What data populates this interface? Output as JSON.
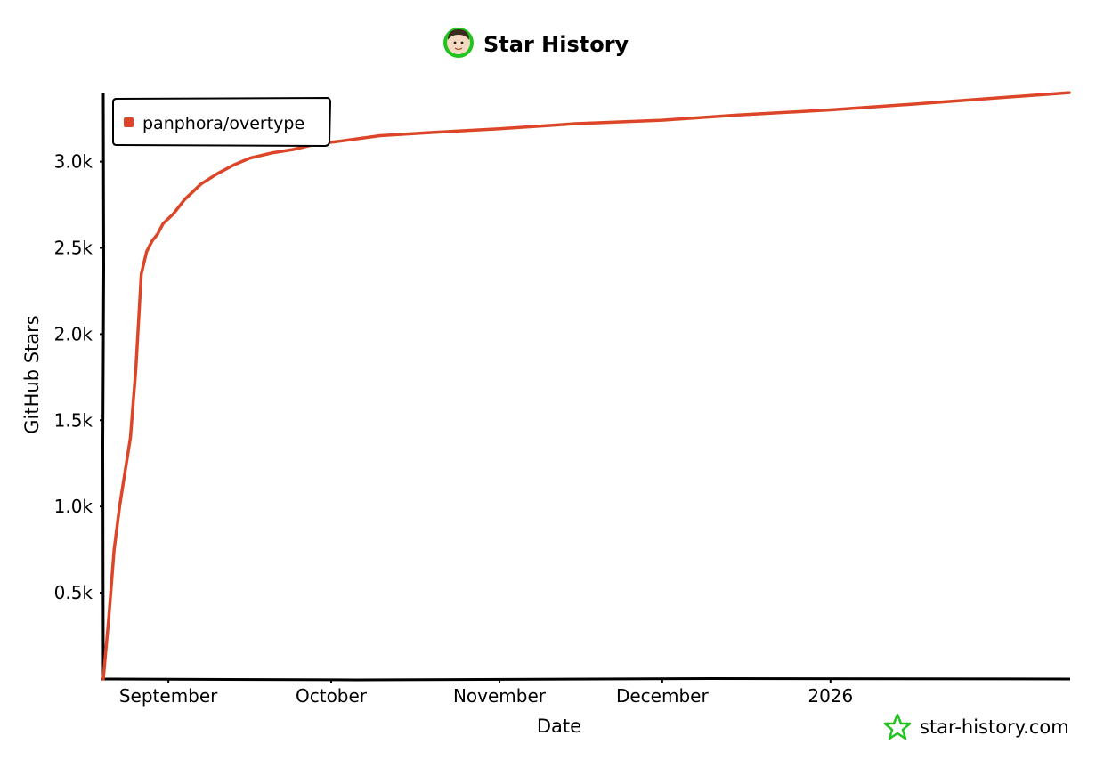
{
  "chart_data": {
    "type": "line",
    "title": "Star History",
    "xlabel": "Date",
    "ylabel": "GitHub Stars",
    "x_ticks": [
      "September",
      "October",
      "November",
      "December",
      "2026"
    ],
    "y_ticks": [
      "0.5k",
      "1.0k",
      "1.5k",
      "2.0k",
      "2.5k",
      "3.0k"
    ],
    "ylim": [
      0,
      3400
    ],
    "xlim": [
      "2025-08-20",
      "2026-02-14"
    ],
    "grid": false,
    "legend": "top-left",
    "series": [
      {
        "name": "panphora/overtype",
        "color": "#dd4528",
        "x": [
          "2025-08-20",
          "2025-08-21",
          "2025-08-22",
          "2025-08-23",
          "2025-08-24",
          "2025-08-25",
          "2025-08-26",
          "2025-08-27",
          "2025-08-28",
          "2025-08-29",
          "2025-08-30",
          "2025-08-31",
          "2025-09-02",
          "2025-09-04",
          "2025-09-07",
          "2025-09-10",
          "2025-09-13",
          "2025-09-16",
          "2025-09-20",
          "2025-09-24",
          "2025-09-28",
          "2025-10-03",
          "2025-10-10",
          "2025-10-20",
          "2025-11-01",
          "2025-11-15",
          "2025-12-01",
          "2025-12-15",
          "2026-01-01",
          "2026-01-15",
          "2026-02-01",
          "2026-02-14"
        ],
        "values": [
          0,
          350,
          750,
          1000,
          1200,
          1400,
          1800,
          2350,
          2480,
          2540,
          2580,
          2640,
          2700,
          2780,
          2870,
          2930,
          2980,
          3020,
          3050,
          3070,
          3100,
          3120,
          3150,
          3170,
          3190,
          3220,
          3240,
          3270,
          3300,
          3330,
          3370,
          3400
        ]
      }
    ]
  },
  "watermark": {
    "text": "star-history.com",
    "icon": "star-outline-icon",
    "color": "#21c41f"
  },
  "title_icon": "avatar",
  "colors": {
    "line": "#dd4528",
    "avatar_ring": "#21c41f"
  }
}
